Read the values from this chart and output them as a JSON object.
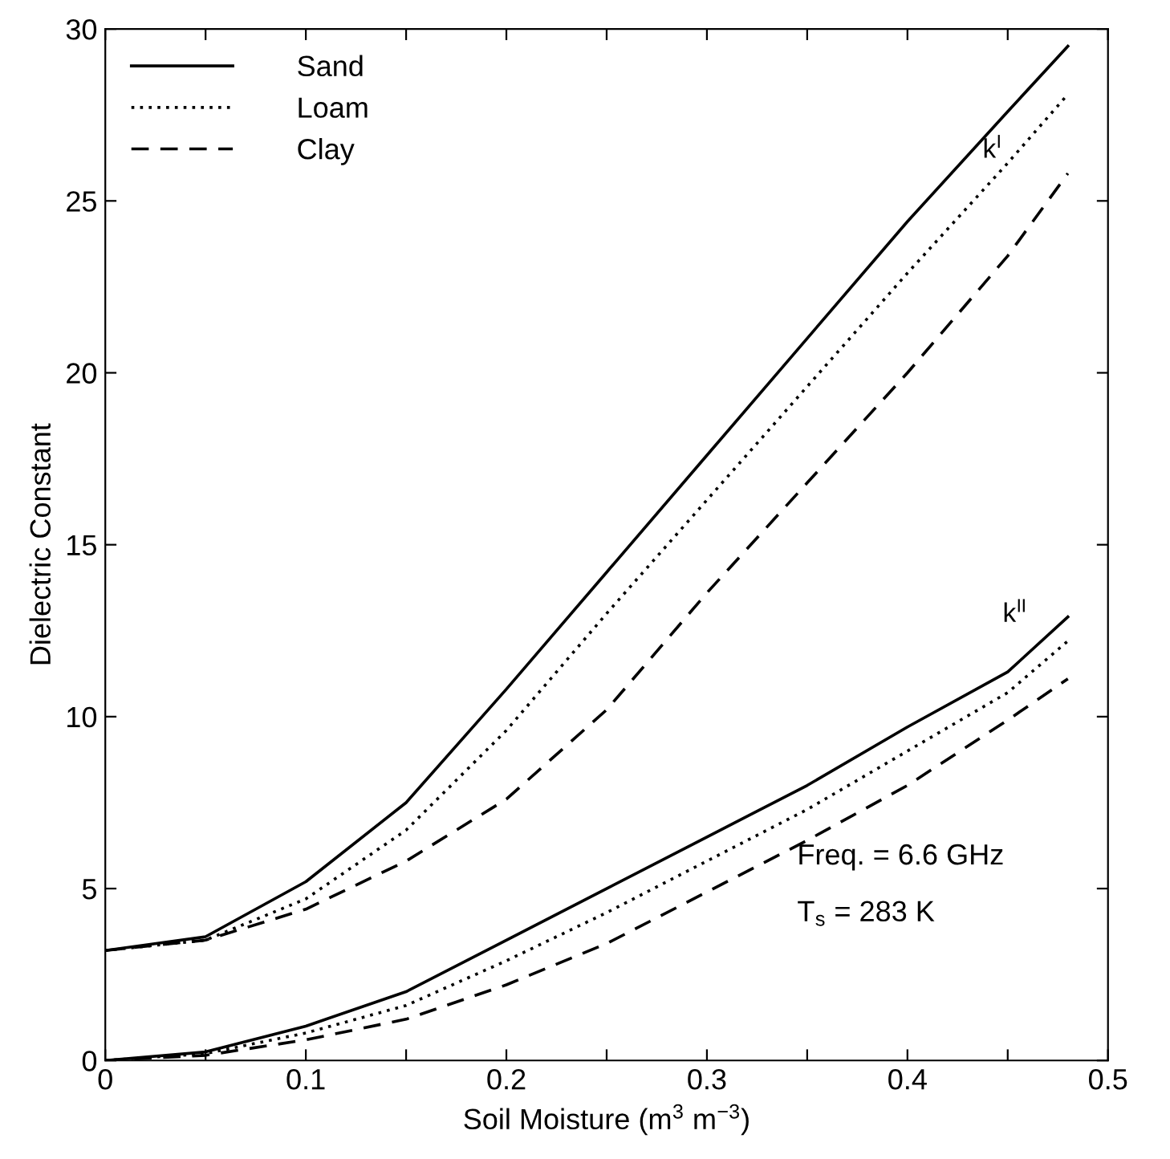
{
  "chart_data": {
    "type": "line",
    "xlabel": "Soil Moisture (m$^{3}$ m$^{−3}$)",
    "ylabel": "Dielectric Constant",
    "x": [
      0,
      0.05,
      0.1,
      0.15,
      0.2,
      0.25,
      0.3,
      0.35,
      0.4,
      0.45,
      0.48
    ],
    "series": [
      {
        "name": "Sand",
        "color": "#000000",
        "line_style": "solid",
        "values": [
          3.2,
          3.6,
          5.2,
          7.5,
          10.8,
          14.2,
          17.6,
          21.0,
          24.4,
          27.6,
          29.5
        ]
      },
      {
        "name": "Loam",
        "color": "#000000",
        "line_style": "dotted",
        "values": [
          3.2,
          3.5,
          4.7,
          6.7,
          9.6,
          13.0,
          16.3,
          19.6,
          22.9,
          26.1,
          28.1
        ]
      },
      {
        "name": "Clay",
        "color": "#000000",
        "line_style": "dashed",
        "values": [
          3.2,
          3.5,
          4.4,
          5.8,
          7.6,
          10.2,
          13.6,
          16.8,
          20.0,
          23.4,
          25.8
        ]
      },
      {
        "color": "#000000",
        "line_style": "solid",
        "values": [
          0,
          0.25,
          1.0,
          2.0,
          3.5,
          5.0,
          6.5,
          8.0,
          9.7,
          11.3,
          12.9
        ]
      },
      {
        "color": "#000000",
        "line_style": "dotted",
        "values": [
          0,
          0.2,
          0.8,
          1.6,
          2.9,
          4.3,
          5.8,
          7.3,
          9.0,
          10.7,
          12.2
        ]
      },
      {
        "color": "#000000",
        "line_style": "dashed",
        "values": [
          0,
          0.15,
          0.6,
          1.2,
          2.2,
          3.4,
          4.9,
          6.4,
          8.0,
          9.9,
          11.1
        ]
      }
    ],
    "annotations": [
      "k$^{I}$",
      "k$^{II}$",
      "Freq. = 6.6 GHz",
      "T$_{s}$ = 283 K"
    ],
    "xlim": [
      0,
      0.5
    ],
    "ylim": [
      0,
      30
    ],
    "xticks": [
      0,
      {
        "value": 0.05,
        "label": null
      },
      0.1,
      {
        "value": 0.15,
        "label": null
      },
      0.2,
      {
        "value": 0.25,
        "label": null
      },
      0.3,
      {
        "value": 0.35,
        "label": null
      },
      0.4,
      {
        "value": 0.45,
        "label": null
      },
      0.5
    ],
    "yticks": [
      0,
      5,
      10,
      15,
      20,
      25,
      30
    ],
    "grid": false,
    "legend": "top left",
    "marker": "none"
  }
}
